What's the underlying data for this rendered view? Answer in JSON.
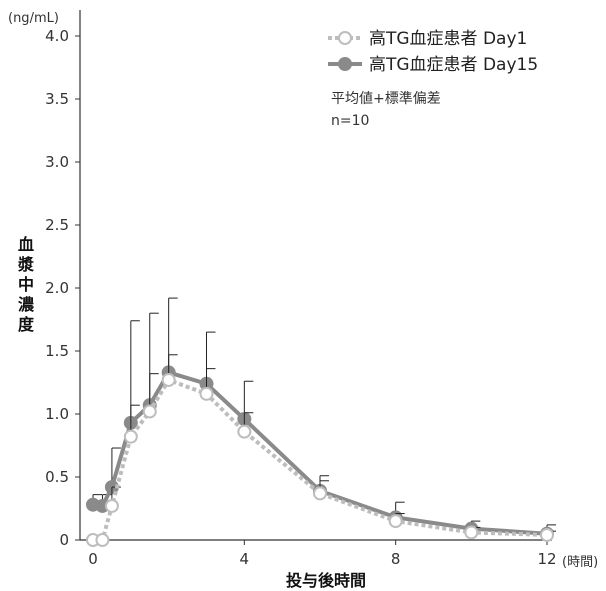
{
  "chart_data": {
    "type": "line",
    "y_unit": "(ng/mL)",
    "x_unit": "(時間)",
    "xlabel": "投与後時間",
    "ylabel": "血漿中濃度",
    "xlim": [
      0,
      12
    ],
    "ylim": [
      0,
      4.0
    ],
    "x_ticks": [
      0,
      4,
      8,
      12
    ],
    "y_ticks": [
      0,
      0.5,
      1.0,
      1.5,
      2.0,
      2.5,
      3.0,
      3.5,
      4.0
    ],
    "y_tick_labels": [
      "0",
      "0.5",
      "1.0",
      "1.5",
      "2.0",
      "2.5",
      "3.0",
      "3.5",
      "4.0"
    ],
    "x_tick_labels": [
      "0",
      "4",
      "8",
      "12"
    ],
    "legend_position": "top-right",
    "note_lines": [
      "平均値+標準偏差",
      "n=10"
    ],
    "series": [
      {
        "name": "高TG血症患者 Day1",
        "color": "#bdbdbd",
        "line_style": "dotted",
        "marker": "open-circle",
        "x": [
          0,
          0.25,
          0.5,
          1,
          1.5,
          2,
          3,
          4,
          6,
          8,
          10,
          12
        ],
        "y": [
          0,
          0,
          0.27,
          0.82,
          1.02,
          1.27,
          1.16,
          0.86,
          0.37,
          0.15,
          0.06,
          0.04
        ],
        "sd": [
          0,
          0,
          0.15,
          0.25,
          0.3,
          0.2,
          0.2,
          0.15,
          0.1,
          0.06,
          0.04,
          0.03
        ]
      },
      {
        "name": "高TG血症患者 Day15",
        "color": "#8a8a8a",
        "line_style": "solid",
        "marker": "filled-circle",
        "x": [
          0,
          0.25,
          0.5,
          1,
          1.5,
          2,
          3,
          4,
          6,
          8,
          10,
          12
        ],
        "y": [
          0.28,
          0.27,
          0.42,
          0.93,
          1.07,
          1.33,
          1.24,
          0.96,
          0.39,
          0.18,
          0.09,
          0.05
        ],
        "sd": [
          0.08,
          0.09,
          0.31,
          0.81,
          0.73,
          0.59,
          0.41,
          0.3,
          0.12,
          0.12,
          0.06,
          0.07
        ]
      }
    ]
  }
}
